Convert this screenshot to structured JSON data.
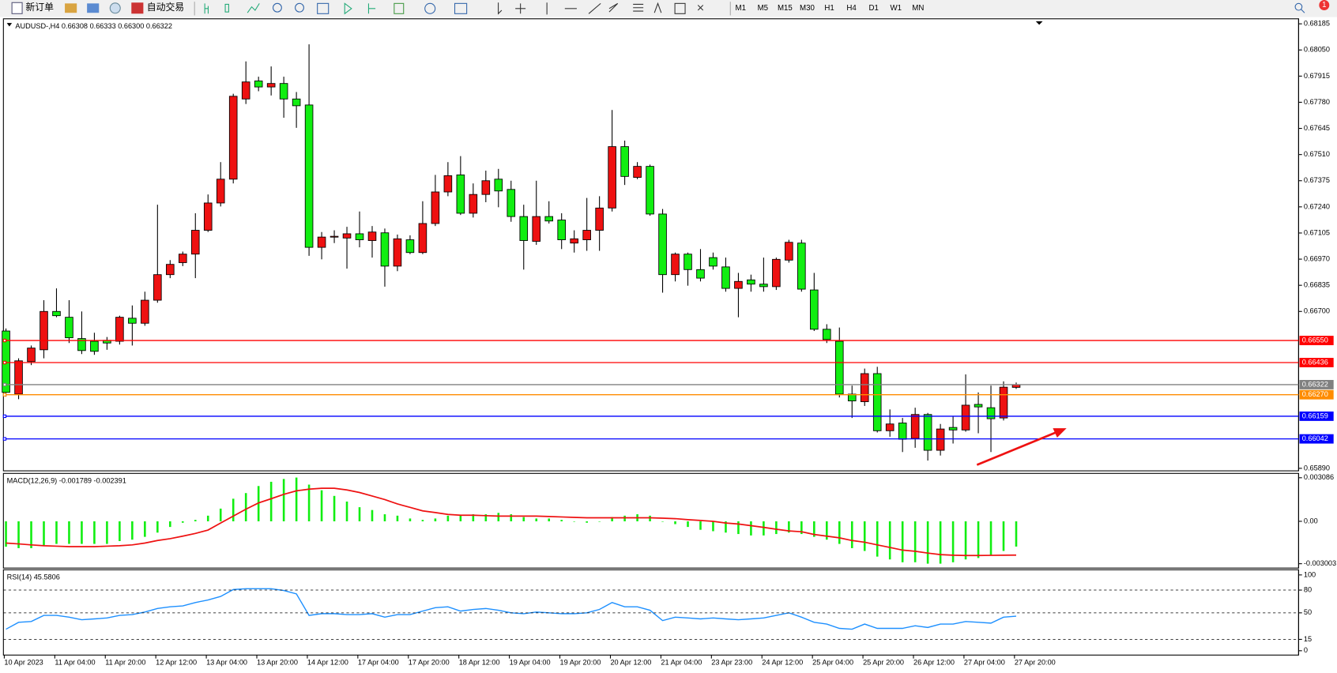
{
  "toolbar": {
    "buttons": [
      "新订单",
      "自动交易"
    ],
    "timeframes": [
      "M1",
      "M5",
      "M15",
      "M30",
      "H1",
      "H4",
      "D1",
      "W1",
      "MN"
    ],
    "badge": "1"
  },
  "chart_data": [
    {
      "type": "candlestick",
      "title": "AUDUSD-,H4 0.66308 0.66333 0.66300 0.66322",
      "categories": [
        "10 Apr 2023",
        null,
        null,
        null,
        "11 Apr 04:00",
        null,
        null,
        null,
        "11 Apr 20:00",
        null,
        null,
        null,
        "12 Apr 12:00",
        null,
        null,
        null,
        "13 Apr 04:00",
        null,
        null,
        null,
        "13 Apr 20:00",
        null,
        null,
        null,
        "14 Apr 12:00",
        null,
        null,
        null,
        "17 Apr 04:00",
        null,
        null,
        null,
        "17 Apr 20:00",
        null,
        null,
        null,
        "18 Apr 12:00",
        null,
        null,
        null,
        "19 Apr 04:00",
        null,
        null,
        null,
        "19 Apr 20:00",
        null,
        null,
        null,
        "20 Apr 12:00",
        null,
        null,
        null,
        "21 Apr 04:00",
        null,
        null,
        null,
        "23 Apr 23:00",
        null,
        null,
        null,
        "24 Apr 12:00",
        null,
        null,
        null,
        "25 Apr 04:00",
        null,
        null,
        null,
        "25 Apr 20:00",
        null,
        null,
        null,
        "26 Apr 12:00",
        null,
        null,
        null,
        "27 Apr 04:00",
        null,
        null,
        null,
        "27 Apr 20:00"
      ],
      "open": [
        0.66599,
        0.66273,
        0.66441,
        0.66502,
        0.667,
        0.6667,
        0.6656,
        0.66546,
        0.66551,
        0.66546,
        0.66665,
        0.66639,
        0.66758,
        0.6689,
        0.66952,
        0.66996,
        0.67119,
        0.6726,
        0.67383,
        0.67797,
        0.6789,
        0.67859,
        0.67877,
        0.67797,
        0.67766,
        0.67031,
        0.67084,
        0.67079,
        0.67101,
        0.67066,
        0.67106,
        0.66934,
        0.6707,
        0.67004,
        0.67154,
        0.67317,
        0.67405,
        0.67207,
        0.67304,
        0.67383,
        0.6733,
        0.6719,
        0.67062,
        0.6719,
        0.67172,
        0.67053,
        0.6707,
        0.67119,
        0.67234,
        0.67551,
        0.67392,
        0.67449,
        0.67203,
        0.6689,
        0.66996,
        0.66916,
        0.66978,
        0.6693,
        0.66819,
        0.66863,
        0.66841,
        0.66828,
        0.66965,
        0.67053,
        0.66811,
        0.66608,
        0.66546,
        0.66273,
        0.66234,
        0.66379,
        0.66084,
        0.66124,
        0.66044,
        0.66168,
        0.65983,
        0.66101,
        0.66088,
        0.6622,
        0.66203,
        0.6615,
        0.66308
      ],
      "high": [
        0.66612,
        0.66458,
        0.66524,
        0.66758,
        0.66819,
        0.66758,
        0.667,
        0.6659,
        0.66568,
        0.66678,
        0.66731,
        0.66802,
        0.67251,
        0.66965,
        0.67009,
        0.67207,
        0.67304,
        0.67471,
        0.67824,
        0.67991,
        0.67912,
        0.67965,
        0.67912,
        0.67833,
        0.68079,
        0.6711,
        0.67119,
        0.67137,
        0.67216,
        0.67141,
        0.67128,
        0.67097,
        0.67093,
        0.67269,
        0.67405,
        0.67471,
        0.67502,
        0.67361,
        0.67427,
        0.67436,
        0.67375,
        0.67251,
        0.67375,
        0.67269,
        0.67207,
        0.67119,
        0.67286,
        0.67295,
        0.6774,
        0.67582,
        0.67471,
        0.67458,
        0.67229,
        0.67004,
        0.67004,
        0.67022,
        0.67004,
        0.66978,
        0.66899,
        0.6689,
        0.66978,
        0.66978,
        0.6707,
        0.6707,
        0.66899,
        0.66634,
        0.66617,
        0.66317,
        0.66405,
        0.66414,
        0.66194,
        0.6615,
        0.66203,
        0.66176,
        0.66119,
        0.66159,
        0.66375,
        0.66282,
        0.66317,
        0.66339,
        0.66333
      ],
      "low": [
        0.6626,
        0.66247,
        0.66423,
        0.66458,
        0.6667,
        0.66537,
        0.6648,
        0.66476,
        0.66502,
        0.66529,
        0.66524,
        0.66626,
        0.66745,
        0.66872,
        0.66934,
        0.66872,
        0.6711,
        0.67242,
        0.67361,
        0.67771,
        0.67837,
        0.67815,
        0.677,
        0.67648,
        0.66987,
        0.66969,
        0.67053,
        0.66921,
        0.67031,
        0.66978,
        0.66828,
        0.66908,
        0.66996,
        0.66996,
        0.67141,
        0.67295,
        0.67198,
        0.67185,
        0.67264,
        0.67238,
        0.67163,
        0.66916,
        0.67044,
        0.67154,
        0.67022,
        0.67004,
        0.67013,
        0.67013,
        0.67216,
        0.67353,
        0.67383,
        0.67194,
        0.66797,
        0.66855,
        0.66833,
        0.66855,
        0.66916,
        0.66802,
        0.6667,
        0.66802,
        0.66802,
        0.66811,
        0.66952,
        0.66802,
        0.66599,
        0.66537,
        0.66256,
        0.6615,
        0.66212,
        0.66075,
        0.66053,
        0.65974,
        0.65996,
        0.6593,
        0.65956,
        0.66018,
        0.66079,
        0.66071,
        0.65974,
        0.66137,
        0.663
      ],
      "close": [
        0.66282,
        0.66445,
        0.66511,
        0.667,
        0.66678,
        0.66564,
        0.66498,
        0.66494,
        0.66537,
        0.6667,
        0.66639,
        0.66758,
        0.6689,
        0.66943,
        0.66996,
        0.67119,
        0.6726,
        0.67383,
        0.67811,
        0.67885,
        0.67859,
        0.67877,
        0.67797,
        0.67762,
        0.67031,
        0.67084,
        0.67088,
        0.67101,
        0.6707,
        0.6711,
        0.66934,
        0.67075,
        0.67004,
        0.67154,
        0.67317,
        0.67401,
        0.67207,
        0.67304,
        0.67375,
        0.67322,
        0.6719,
        0.67066,
        0.6719,
        0.67167,
        0.6707,
        0.67075,
        0.67119,
        0.67234,
        0.67551,
        0.67397,
        0.67449,
        0.67203,
        0.6689,
        0.66996,
        0.66916,
        0.66872,
        0.66934,
        0.66819,
        0.66855,
        0.66841,
        0.66828,
        0.66969,
        0.67057,
        0.66815,
        0.66608,
        0.66555,
        0.66273,
        0.66238,
        0.66379,
        0.66084,
        0.66119,
        0.6604,
        0.66168,
        0.65983,
        0.66093,
        0.66088,
        0.66216,
        0.66207,
        0.66146,
        0.66309,
        0.66322
      ],
      "up_color": "#ee1111",
      "down_color": "#11ee11",
      "ylim": [
        0.65877,
        0.68211
      ],
      "yticks": [
        0.68185,
        {
          "value": 0.6805,
          "label": "0.68050"
        },
        0.67915,
        {
          "value": 0.6778,
          "label": "0.67780"
        },
        0.67645,
        {
          "value": 0.6751,
          "label": "0.67510"
        },
        0.67375,
        {
          "value": 0.6724,
          "label": "0.67240"
        },
        0.67105,
        {
          "value": 0.6697,
          "label": "0.66970"
        },
        0.66835,
        {
          "value": 0.667,
          "label": "0.66700"
        },
        {
          "value": 0.6589,
          "label": "0.65890"
        }
      ],
      "levels": [
        {
          "value": 0.6655,
          "label": "0.66550",
          "color": "#ff0000"
        },
        {
          "value": 0.66436,
          "color": "#ff0000"
        },
        {
          "value": 0.66322,
          "color": "#808080"
        },
        {
          "value": 0.6627,
          "label": "0.66270",
          "color": "#ff8c00"
        },
        {
          "value": 0.66159,
          "color": "#0000ff"
        },
        {
          "value": 0.66042,
          "color": "#0000ff"
        }
      ]
    },
    {
      "type": "macd",
      "title": "MACD(12,26,9) -0.001789 -0.002391",
      "values": [
        -0.0018,
        -0.0019,
        -0.0019,
        -0.0017,
        -0.0016,
        -0.0016,
        -0.0016,
        -0.0016,
        -0.0016,
        -0.0014,
        -0.0013,
        -0.0011,
        -0.0008,
        -0.0004,
        -0.0001,
        0.0001,
        0.0004,
        0.0009,
        0.0016,
        0.002,
        0.0025,
        0.0028,
        0.003,
        0.0031,
        0.0026,
        0.0022,
        0.0018,
        0.0014,
        0.001,
        0.0008,
        0.0005,
        0.0004,
        0.0002,
        0.0001,
        0.0002,
        0.0004,
        0.0004,
        0.0005,
        0.0005,
        0.0006,
        0.0005,
        0.0003,
        0.0002,
        0.0002,
        0.0001,
        0,
        -0.0001,
        0,
        0.0003,
        0.0004,
        0.0005,
        0.0004,
        0,
        -0.0002,
        -0.0004,
        -0.0006,
        -0.0007,
        -0.0008,
        -0.0009,
        -0.001,
        -0.001,
        -0.0009,
        -0.0008,
        -0.0009,
        -0.0011,
        -0.0013,
        -0.0016,
        -0.0019,
        -0.0021,
        -0.0025,
        -0.0027,
        -0.0029,
        -0.0029,
        -0.003,
        -0.003,
        -0.0029,
        -0.0027,
        -0.0026,
        -0.0024,
        -0.0021,
        -0.001789
      ],
      "signal_values": [
        -0.00154,
        -0.0016,
        -0.00167,
        -0.00173,
        -0.00176,
        -0.00179,
        -0.00179,
        -0.00179,
        -0.00176,
        -0.00173,
        -0.00167,
        -0.00154,
        -0.00136,
        -0.00123,
        -0.00105,
        -0.00086,
        -0.00062,
        -0.00012,
        0.00037,
        0.00086,
        0.0013,
        0.0016,
        0.00191,
        0.00216,
        0.00228,
        0.00234,
        0.00234,
        0.00222,
        0.00204,
        0.00179,
        0.00154,
        0.00123,
        0.00099,
        0.00074,
        0.00062,
        0.00049,
        0.00043,
        0.00043,
        0.0004,
        0.00037,
        0.00037,
        0.00037,
        0.00037,
        0.00034,
        0.00031,
        0.00028,
        0.00025,
        0.00025,
        0.00025,
        0.00025,
        0.00025,
        0.00025,
        0.00022,
        0.00019,
        0.00012,
        6e-05,
        0,
        -0.00012,
        -0.00019,
        -0.00031,
        -0.00043,
        -0.00056,
        -0.00068,
        -0.00074,
        -0.00093,
        -0.00105,
        -0.00117,
        -0.00136,
        -0.00148,
        -0.00167,
        -0.00185,
        -0.00204,
        -0.00212,
        -0.00225,
        -0.00236,
        -0.0024,
        -0.00242,
        -0.00242,
        -0.00241,
        -0.0024,
        -0.002391
      ],
      "color": "#11ee11",
      "signal_color": "#ee1111",
      "ylim": [
        -0.003311,
        0.003394
      ],
      "yticks": [
        0.003086,
        {
          "value": 0,
          "label": "0.00"
        },
        -0.003003
      ]
    },
    {
      "type": "line",
      "title": "RSI(14) 45.5806",
      "values": [
        28.4,
        37.5,
        38.6,
        46.6,
        46.6,
        44.3,
        40.9,
        42,
        43.2,
        46.6,
        47.7,
        51.1,
        55.7,
        58,
        59.1,
        63.6,
        67,
        71.6,
        80.7,
        81.8,
        81.8,
        81.8,
        79.5,
        75,
        46.6,
        48.9,
        48.9,
        47.7,
        47.7,
        48.9,
        44.3,
        47.7,
        47.7,
        52.3,
        56.8,
        58,
        52.3,
        54.5,
        55.7,
        53.4,
        50,
        48.9,
        51.1,
        50,
        48.9,
        48.9,
        50,
        54.5,
        63.6,
        58,
        58,
        53.4,
        39.8,
        44.3,
        43.2,
        42,
        43.2,
        42,
        40.9,
        42,
        43.2,
        46.6,
        50,
        44.3,
        37.5,
        35.2,
        29.5,
        28.4,
        35.2,
        29.5,
        29.5,
        29.5,
        33,
        30.7,
        35.2,
        35.2,
        38.6,
        37.5,
        36.4,
        44.3,
        45.5806
      ],
      "color": "#1e90ff",
      "ylim": [
        -5.7,
        106.8
      ],
      "yticks": [
        100,
        80,
        50,
        15,
        0
      ],
      "levels": [
        80,
        50,
        15
      ],
      "level_style": "dashed"
    }
  ]
}
